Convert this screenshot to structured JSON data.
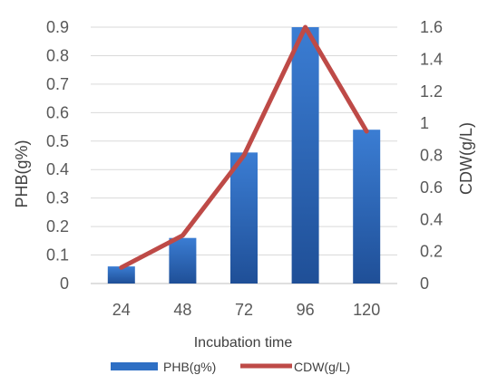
{
  "chart_data": {
    "type": "bar",
    "title": "",
    "categories": [
      "24",
      "48",
      "72",
      "96",
      "120"
    ],
    "xlabel": "Incubation time",
    "ylabel": "PHB(g%)",
    "ylabel_right": "CDW(g/L)",
    "ylim": [
      0,
      0.9
    ],
    "ylim_right": [
      0,
      1.6
    ],
    "yticks": [
      "0",
      "0.1",
      "0.2",
      "0.3",
      "0.4",
      "0.5",
      "0.6",
      "0.7",
      "0.8",
      "0.9"
    ],
    "yticks_right": [
      "0",
      "0.2",
      "0.4",
      "0.6",
      "0.8",
      "1",
      "1.2",
      "1.4",
      "1.6"
    ],
    "grid": true,
    "legend_position": "bottom",
    "series": [
      {
        "name": "PHB(g%)",
        "type": "bar",
        "axis": "left",
        "color": "#2e6fc4",
        "values": [
          0.06,
          0.16,
          0.46,
          0.9,
          0.54
        ]
      },
      {
        "name": "CDW(g/L)",
        "type": "line",
        "axis": "right",
        "color": "#be4a47",
        "values": [
          0.1,
          0.3,
          0.8,
          1.6,
          0.95
        ]
      }
    ]
  }
}
